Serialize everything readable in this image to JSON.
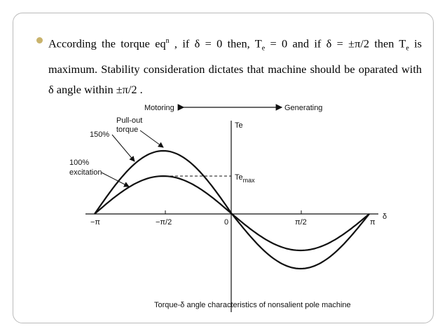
{
  "slide": {
    "bullet_parts": [
      "According the torque eq",
      "n",
      " , if δ = 0 then, T",
      "e",
      " = 0 and if  δ = ±π/2  then T",
      "e",
      " is maximum. Stability consideration dictates that machine should be oparated with δ angle within  ±π/2 ."
    ],
    "figure": {
      "motoring": "Motoring",
      "generating": "Generating",
      "y_axis": "Te",
      "x_axis": "δ",
      "te_max": "Te",
      "te_max_sub": "max",
      "x_labels": [
        "−π",
        "−π/2",
        "0",
        "π/2",
        "π"
      ],
      "pullout_1": "Pull-out",
      "pullout_2": "torque",
      "label_150": "150%",
      "label_100_1": "100%",
      "label_100_2": "excitation",
      "caption": "Torque-δ angle characteristics of nonsalient pole machine"
    }
  }
}
